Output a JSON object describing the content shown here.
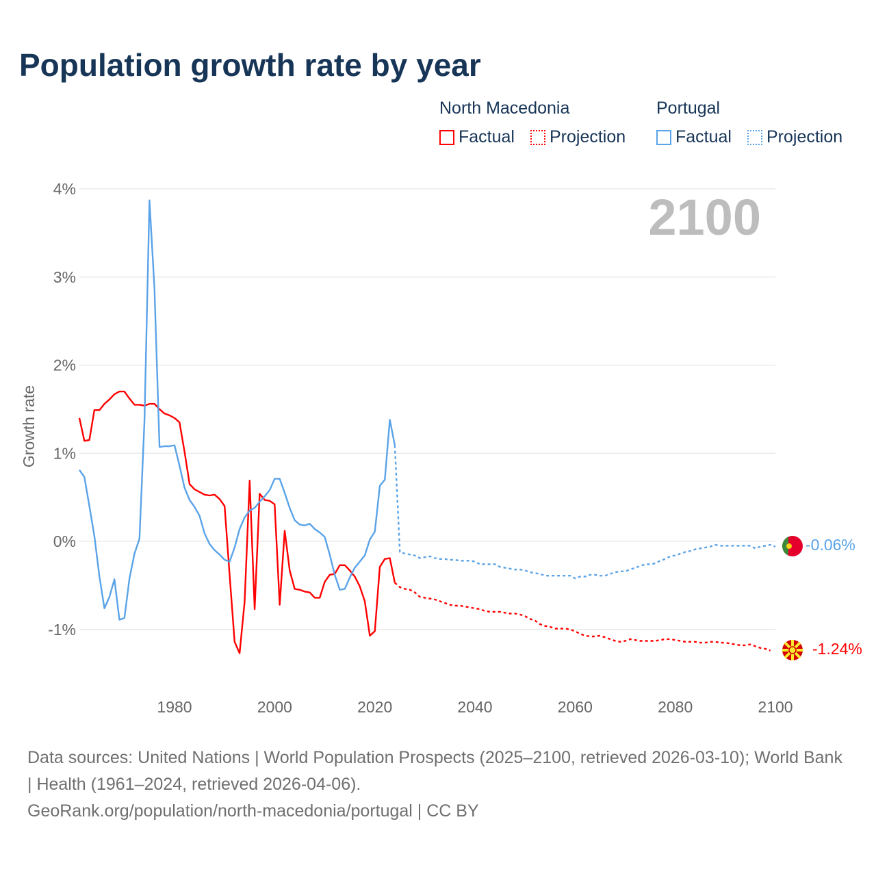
{
  "title": "Population growth rate by year",
  "legend": {
    "groups": [
      {
        "name": "North Macedonia",
        "color": "#ff0000",
        "factual": "Factual",
        "projection": "Projection"
      },
      {
        "name": "Portugal",
        "color": "#5aa3e8",
        "factual": "Factual",
        "projection": "Projection"
      }
    ]
  },
  "footer": {
    "line1": "Data sources: United Nations | World Population Prospects (2025–2100, retrieved 2026-03-10); World Bank | Health (1961–2024, retrieved 2026-04-06).",
    "line2": "GeoRank.org/population/north-macedonia/portugal | CC BY"
  },
  "chart_data": {
    "type": "line",
    "title": "Population growth rate by year",
    "ylabel": "Growth rate",
    "xlabel": "",
    "year_label": "2100",
    "xlim": [
      1961,
      2100
    ],
    "ylim": [
      -1.6,
      4.1
    ],
    "x_ticks": [
      1980,
      2000,
      2020,
      2040,
      2060,
      2080,
      2100
    ],
    "y_ticks": [
      {
        "v": 4,
        "label": "4%"
      },
      {
        "v": 3,
        "label": "3%"
      },
      {
        "v": 2,
        "label": "2%"
      },
      {
        "v": 1,
        "label": "1%"
      },
      {
        "v": 0,
        "label": "0%"
      },
      {
        "v": -1,
        "label": "-1%"
      }
    ],
    "grid": true,
    "legend_position": "top-right",
    "factual_years": [
      1961,
      2024
    ],
    "projection_years": [
      2024,
      2100
    ],
    "series": [
      {
        "name": "North Macedonia",
        "color": "#ff0000",
        "end_label": "-1.24%",
        "start_year": 1961,
        "values": [
          1.4,
          1.14,
          1.15,
          1.49,
          1.49,
          1.56,
          1.61,
          1.67,
          1.7,
          1.7,
          1.62,
          1.55,
          1.55,
          1.54,
          1.56,
          1.56,
          1.5,
          1.45,
          1.43,
          1.4,
          1.35,
          1.02,
          0.65,
          0.59,
          0.56,
          0.53,
          0.52,
          0.53,
          0.48,
          0.4,
          -0.38,
          -1.14,
          -1.27,
          -0.69,
          0.69,
          -0.77,
          0.54,
          0.47,
          0.46,
          0.42,
          -0.72,
          0.12,
          -0.33,
          -0.54,
          -0.55,
          -0.57,
          -0.58,
          -0.64,
          -0.64,
          -0.46,
          -0.38,
          -0.37,
          -0.27,
          -0.27,
          -0.33,
          -0.4,
          -0.51,
          -0.68,
          -1.07,
          -1.02,
          -0.29,
          -0.2,
          -0.19,
          -0.47,
          -0.52,
          -0.54,
          -0.55,
          -0.58,
          -0.63,
          -0.64,
          -0.65,
          -0.66,
          -0.68,
          -0.7,
          -0.72,
          -0.73,
          -0.73,
          -0.74,
          -0.75,
          -0.76,
          -0.77,
          -0.79,
          -0.8,
          -0.8,
          -0.8,
          -0.81,
          -0.82,
          -0.82,
          -0.83,
          -0.85,
          -0.88,
          -0.9,
          -0.94,
          -0.96,
          -0.97,
          -0.99,
          -0.99,
          -0.99,
          -1.0,
          -1.02,
          -1.05,
          -1.07,
          -1.08,
          -1.08,
          -1.07,
          -1.09,
          -1.11,
          -1.13,
          -1.14,
          -1.13,
          -1.11,
          -1.12,
          -1.13,
          -1.13,
          -1.13,
          -1.13,
          -1.12,
          -1.11,
          -1.11,
          -1.12,
          -1.13,
          -1.14,
          -1.14,
          -1.14,
          -1.15,
          -1.15,
          -1.14,
          -1.14,
          -1.15,
          -1.15,
          -1.16,
          -1.17,
          -1.18,
          -1.18,
          -1.17,
          -1.19,
          -1.21,
          -1.22,
          -1.24
        ]
      },
      {
        "name": "Portugal",
        "color": "#5aa3e8",
        "end_label": "-0.06%",
        "start_year": 1961,
        "values": [
          0.81,
          0.73,
          0.4,
          0.06,
          -0.4,
          -0.76,
          -0.63,
          -0.43,
          -0.89,
          -0.87,
          -0.42,
          -0.14,
          0.03,
          1.37,
          3.87,
          2.87,
          1.07,
          1.08,
          1.08,
          1.09,
          0.86,
          0.61,
          0.47,
          0.39,
          0.29,
          0.09,
          -0.03,
          -0.1,
          -0.15,
          -0.21,
          -0.23,
          -0.07,
          0.14,
          0.27,
          0.35,
          0.38,
          0.45,
          0.51,
          0.58,
          0.71,
          0.71,
          0.55,
          0.38,
          0.24,
          0.19,
          0.18,
          0.2,
          0.14,
          0.1,
          0.05,
          -0.15,
          -0.38,
          -0.55,
          -0.54,
          -0.41,
          -0.3,
          -0.23,
          -0.16,
          0.02,
          0.11,
          0.63,
          0.7,
          1.38,
          1.09,
          -0.12,
          -0.14,
          -0.15,
          -0.16,
          -0.19,
          -0.18,
          -0.17,
          -0.19,
          -0.2,
          -0.2,
          -0.21,
          -0.21,
          -0.22,
          -0.22,
          -0.22,
          -0.23,
          -0.26,
          -0.26,
          -0.26,
          -0.26,
          -0.29,
          -0.3,
          -0.31,
          -0.32,
          -0.32,
          -0.33,
          -0.35,
          -0.36,
          -0.37,
          -0.39,
          -0.39,
          -0.39,
          -0.39,
          -0.39,
          -0.39,
          -0.42,
          -0.4,
          -0.4,
          -0.38,
          -0.38,
          -0.39,
          -0.39,
          -0.37,
          -0.35,
          -0.34,
          -0.34,
          -0.32,
          -0.3,
          -0.28,
          -0.26,
          -0.26,
          -0.25,
          -0.22,
          -0.2,
          -0.17,
          -0.16,
          -0.14,
          -0.12,
          -0.11,
          -0.09,
          -0.08,
          -0.07,
          -0.06,
          -0.04,
          -0.05,
          -0.05,
          -0.05,
          -0.05,
          -0.05,
          -0.05,
          -0.05,
          -0.08,
          -0.06,
          -0.05,
          -0.04,
          -0.06
        ]
      }
    ]
  }
}
